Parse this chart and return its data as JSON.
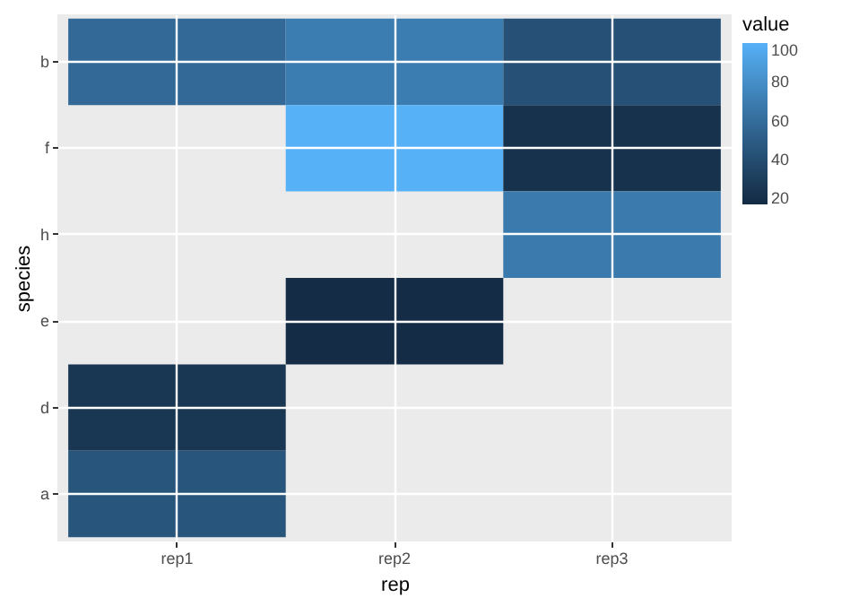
{
  "chart_data": {
    "type": "heatmap",
    "xlabel": "rep",
    "ylabel": "species",
    "clabel": "value",
    "categories": [
      "rep1",
      "rep2",
      "rep3"
    ],
    "y_categories": [
      "b",
      "f",
      "h",
      "e",
      "d",
      "a"
    ],
    "cells": [
      [
        58,
        70,
        42
      ],
      [
        null,
        100,
        22
      ],
      [
        null,
        null,
        68
      ],
      [
        null,
        18,
        null
      ],
      [
        25,
        null,
        null
      ],
      [
        45,
        null,
        null
      ]
    ],
    "clim": [
      17,
      100
    ],
    "cticks": [
      20,
      40,
      60,
      80,
      100
    ],
    "grid": true
  }
}
